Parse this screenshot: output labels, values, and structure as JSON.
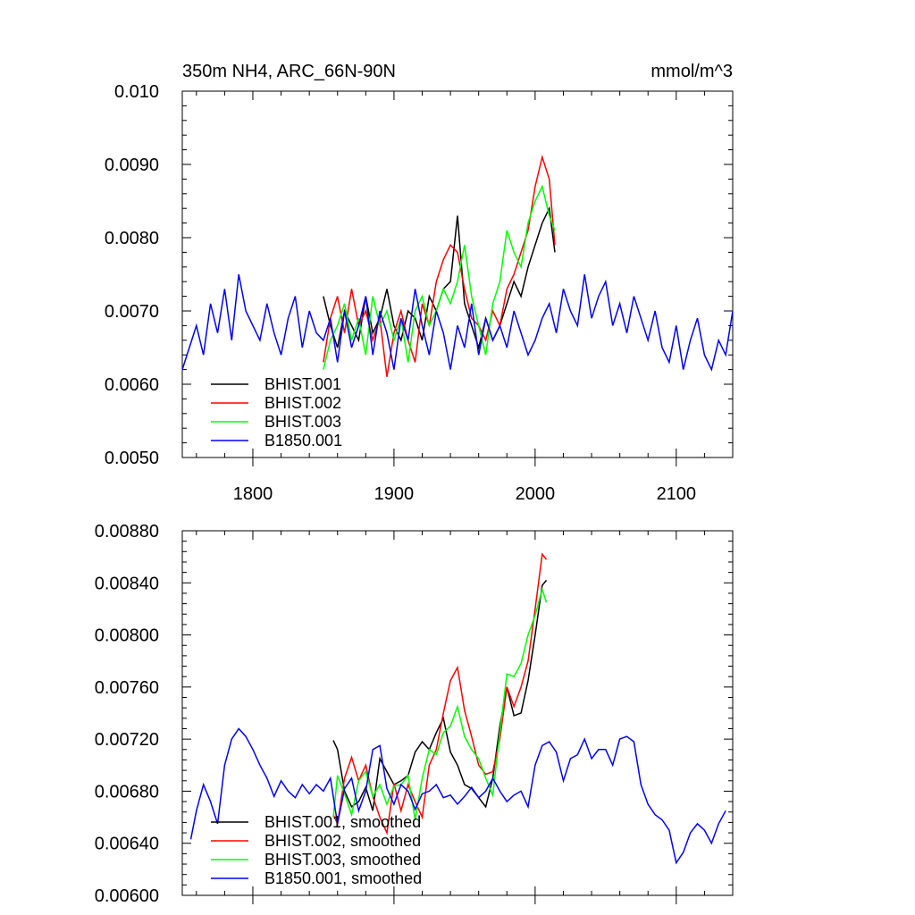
{
  "chart_data": [
    {
      "type": "line",
      "title": "350m NH4, ARC_66N-90N",
      "units": "mmol/m^3",
      "xlabel": "",
      "ylabel": "",
      "xlim": [
        1750,
        2140
      ],
      "ylim": [
        0.005,
        0.01
      ],
      "x_ticks": [
        1800,
        1900,
        2000,
        2100
      ],
      "x_tick_labels": [
        "1800",
        "1900",
        "2000",
        "2100"
      ],
      "y_ticks": [
        0.005,
        0.006,
        0.007,
        0.008,
        0.009,
        0.01
      ],
      "y_tick_labels": [
        "0.0050",
        "0.0060",
        "0.0070",
        "0.0080",
        "0.0090",
        "0.010"
      ],
      "grid": false,
      "legend_position": "bottom-left",
      "series": [
        {
          "name": "BHIST.001",
          "color": "#000000",
          "x": [
            1850,
            1855,
            1860,
            1865,
            1870,
            1875,
            1880,
            1885,
            1890,
            1895,
            1900,
            1905,
            1910,
            1915,
            1920,
            1925,
            1930,
            1935,
            1940,
            1945,
            1950,
            1955,
            1960,
            1965,
            1970,
            1975,
            1980,
            1985,
            1990,
            1995,
            2000,
            2005,
            2010,
            2014
          ],
          "values": [
            0.0072,
            0.0068,
            0.0065,
            0.007,
            0.0068,
            0.0066,
            0.0072,
            0.0067,
            0.0069,
            0.0073,
            0.0068,
            0.0066,
            0.007,
            0.0069,
            0.0066,
            0.0072,
            0.007,
            0.0073,
            0.0074,
            0.0083,
            0.0071,
            0.0068,
            0.0065,
            0.0069,
            0.0066,
            0.0068,
            0.0071,
            0.0074,
            0.0072,
            0.0076,
            0.0079,
            0.0082,
            0.0084,
            0.0078
          ]
        },
        {
          "name": "BHIST.002",
          "color": "#ff0000",
          "x": [
            1850,
            1855,
            1860,
            1865,
            1870,
            1875,
            1880,
            1885,
            1890,
            1895,
            1900,
            1905,
            1910,
            1915,
            1920,
            1925,
            1930,
            1935,
            1940,
            1945,
            1950,
            1955,
            1960,
            1965,
            1970,
            1975,
            1980,
            1985,
            1990,
            1995,
            2000,
            2005,
            2010,
            2014
          ],
          "values": [
            0.0063,
            0.0069,
            0.0072,
            0.0067,
            0.0073,
            0.0068,
            0.007,
            0.0066,
            0.0069,
            0.0061,
            0.0067,
            0.007,
            0.0066,
            0.0063,
            0.0071,
            0.0068,
            0.0074,
            0.0077,
            0.0079,
            0.0078,
            0.0073,
            0.0069,
            0.0068,
            0.0066,
            0.007,
            0.0068,
            0.0073,
            0.0075,
            0.0078,
            0.0081,
            0.0087,
            0.0091,
            0.0088,
            0.0079
          ]
        },
        {
          "name": "BHIST.003",
          "color": "#00ff00",
          "x": [
            1850,
            1855,
            1860,
            1865,
            1870,
            1875,
            1880,
            1885,
            1890,
            1895,
            1900,
            1905,
            1910,
            1915,
            1920,
            1925,
            1930,
            1935,
            1940,
            1945,
            1950,
            1955,
            1960,
            1965,
            1970,
            1975,
            1980,
            1985,
            1990,
            1995,
            2000,
            2005,
            2010,
            2014
          ],
          "values": [
            0.0062,
            0.0066,
            0.0068,
            0.0071,
            0.0066,
            0.0069,
            0.0064,
            0.0072,
            0.0068,
            0.007,
            0.0066,
            0.0069,
            0.0063,
            0.007,
            0.0072,
            0.0068,
            0.007,
            0.0073,
            0.0071,
            0.0074,
            0.0079,
            0.0072,
            0.0068,
            0.0064,
            0.0071,
            0.0074,
            0.0081,
            0.0078,
            0.0076,
            0.0082,
            0.0085,
            0.0087,
            0.0083,
            0.0081
          ]
        },
        {
          "name": "B1850.001",
          "color": "#0000ff",
          "x": [
            1750,
            1755,
            1760,
            1765,
            1770,
            1775,
            1780,
            1785,
            1790,
            1795,
            1800,
            1805,
            1810,
            1815,
            1820,
            1825,
            1830,
            1835,
            1840,
            1845,
            1850,
            1855,
            1860,
            1865,
            1870,
            1875,
            1880,
            1885,
            1890,
            1895,
            1900,
            1905,
            1910,
            1915,
            1920,
            1925,
            1930,
            1935,
            1940,
            1945,
            1950,
            1955,
            1960,
            1965,
            1970,
            1975,
            1980,
            1985,
            1990,
            1995,
            2000,
            2005,
            2010,
            2015,
            2020,
            2025,
            2030,
            2035,
            2040,
            2045,
            2050,
            2055,
            2060,
            2065,
            2070,
            2075,
            2080,
            2085,
            2090,
            2095,
            2100,
            2105,
            2110,
            2115,
            2120,
            2125,
            2130,
            2135,
            2140
          ],
          "values": [
            0.0062,
            0.0065,
            0.0068,
            0.0064,
            0.0071,
            0.0067,
            0.0073,
            0.0066,
            0.0075,
            0.007,
            0.0068,
            0.0066,
            0.0071,
            0.0067,
            0.0064,
            0.0069,
            0.0072,
            0.0065,
            0.007,
            0.0067,
            0.0066,
            0.0069,
            0.0063,
            0.007,
            0.0065,
            0.0068,
            0.0072,
            0.0064,
            0.007,
            0.0067,
            0.0062,
            0.0069,
            0.0066,
            0.0073,
            0.0068,
            0.0064,
            0.007,
            0.0067,
            0.0062,
            0.0068,
            0.0065,
            0.0071,
            0.0064,
            0.0069,
            0.0066,
            0.0068,
            0.0065,
            0.007,
            0.0067,
            0.0064,
            0.0066,
            0.0069,
            0.0071,
            0.0067,
            0.0073,
            0.007,
            0.0068,
            0.0075,
            0.0069,
            0.0072,
            0.0074,
            0.0068,
            0.0071,
            0.0067,
            0.0072,
            0.0069,
            0.0066,
            0.007,
            0.0065,
            0.0063,
            0.0068,
            0.0062,
            0.0066,
            0.0069,
            0.0064,
            0.0062,
            0.0066,
            0.0064,
            0.007
          ]
        }
      ]
    },
    {
      "type": "line",
      "title": "",
      "xlabel": "",
      "ylabel": "",
      "xlim": [
        1750,
        2140
      ],
      "ylim": [
        0.006,
        0.0088
      ],
      "x_ticks": [
        1800,
        1900,
        2000,
        2100
      ],
      "x_tick_labels": [
        "",
        "",
        "",
        ""
      ],
      "y_ticks": [
        0.006,
        0.0064,
        0.0068,
        0.0072,
        0.0076,
        0.008,
        0.0084,
        0.0088
      ],
      "y_tick_labels": [
        "0.00600",
        "0.00640",
        "0.00680",
        "0.00720",
        "0.00760",
        "0.00800",
        "0.00840",
        "0.00880"
      ],
      "grid": false,
      "legend_position": "bottom-left",
      "series": [
        {
          "name": "BHIST.001, smoothed",
          "color": "#000000",
          "x": [
            1857,
            1860,
            1865,
            1870,
            1875,
            1880,
            1885,
            1890,
            1895,
            1900,
            1905,
            1910,
            1915,
            1920,
            1925,
            1930,
            1935,
            1940,
            1945,
            1950,
            1955,
            1960,
            1965,
            1970,
            1975,
            1980,
            1985,
            1990,
            1995,
            2000,
            2005,
            2008
          ],
          "values": [
            0.00719,
            0.00712,
            0.0068,
            0.00668,
            0.00672,
            0.00683,
            0.00665,
            0.00705,
            0.00695,
            0.00685,
            0.00688,
            0.00692,
            0.0071,
            0.00718,
            0.00712,
            0.00725,
            0.00736,
            0.0071,
            0.007,
            0.00685,
            0.00682,
            0.00675,
            0.00668,
            0.0069,
            0.0073,
            0.0076,
            0.00738,
            0.0074,
            0.00765,
            0.008,
            0.00838,
            0.00842
          ]
        },
        {
          "name": "BHIST.002, smoothed",
          "color": "#ff0000",
          "x": [
            1857,
            1860,
            1865,
            1870,
            1875,
            1880,
            1885,
            1890,
            1895,
            1900,
            1905,
            1910,
            1915,
            1920,
            1925,
            1930,
            1935,
            1940,
            1945,
            1950,
            1955,
            1960,
            1965,
            1970,
            1975,
            1980,
            1985,
            1990,
            1995,
            2000,
            2005,
            2008
          ],
          "values": [
            0.00662,
            0.00655,
            0.0069,
            0.00706,
            0.00688,
            0.007,
            0.00676,
            0.0066,
            0.00648,
            0.00686,
            0.00665,
            0.00685,
            0.00672,
            0.0066,
            0.007,
            0.00712,
            0.0074,
            0.00765,
            0.00775,
            0.00742,
            0.00722,
            0.007,
            0.00693,
            0.00695,
            0.0072,
            0.0076,
            0.00745,
            0.0076,
            0.0078,
            0.0082,
            0.00862,
            0.00858
          ]
        },
        {
          "name": "BHIST.003, smoothed",
          "color": "#00ff00",
          "x": [
            1857,
            1860,
            1865,
            1870,
            1875,
            1880,
            1885,
            1890,
            1895,
            1900,
            1905,
            1910,
            1915,
            1920,
            1925,
            1930,
            1935,
            1940,
            1945,
            1950,
            1955,
            1960,
            1965,
            1970,
            1975,
            1980,
            1985,
            1990,
            1995,
            2000,
            2005,
            2008
          ],
          "values": [
            0.0066,
            0.00692,
            0.00678,
            0.00662,
            0.00688,
            0.00695,
            0.00676,
            0.00685,
            0.0067,
            0.00684,
            0.00685,
            0.00692,
            0.00658,
            0.0069,
            0.00712,
            0.00708,
            0.00725,
            0.0073,
            0.00745,
            0.00722,
            0.00712,
            0.00705,
            0.0069,
            0.00677,
            0.00725,
            0.0077,
            0.00768,
            0.00778,
            0.008,
            0.00815,
            0.00835,
            0.00825
          ]
        },
        {
          "name": "B1850.001, smoothed",
          "color": "#0000ff",
          "x": [
            1756,
            1760,
            1765,
            1770,
            1775,
            1780,
            1785,
            1790,
            1795,
            1800,
            1805,
            1810,
            1815,
            1820,
            1825,
            1830,
            1835,
            1840,
            1845,
            1850,
            1855,
            1860,
            1865,
            1870,
            1875,
            1880,
            1885,
            1890,
            1895,
            1900,
            1905,
            1910,
            1915,
            1920,
            1925,
            1930,
            1935,
            1940,
            1945,
            1950,
            1955,
            1960,
            1965,
            1970,
            1975,
            1980,
            1985,
            1990,
            1995,
            2000,
            2005,
            2010,
            2015,
            2020,
            2025,
            2030,
            2035,
            2040,
            2045,
            2050,
            2055,
            2060,
            2065,
            2070,
            2075,
            2080,
            2085,
            2090,
            2095,
            2100,
            2105,
            2110,
            2115,
            2120,
            2125,
            2130,
            2135
          ],
          "values": [
            0.00643,
            0.00665,
            0.00685,
            0.00672,
            0.00655,
            0.007,
            0.0072,
            0.00728,
            0.00722,
            0.00712,
            0.007,
            0.0069,
            0.00676,
            0.00688,
            0.0068,
            0.00675,
            0.00685,
            0.00678,
            0.00685,
            0.0068,
            0.0069,
            0.00655,
            0.00682,
            0.0069,
            0.00665,
            0.0068,
            0.00712,
            0.00715,
            0.00682,
            0.0067,
            0.00685,
            0.0068,
            0.00666,
            0.00678,
            0.0068,
            0.00685,
            0.00675,
            0.00677,
            0.0067,
            0.00676,
            0.00683,
            0.00675,
            0.0068,
            0.0069,
            0.0068,
            0.00672,
            0.00677,
            0.0068,
            0.00668,
            0.007,
            0.00715,
            0.00718,
            0.0071,
            0.00688,
            0.00705,
            0.00708,
            0.0072,
            0.00705,
            0.00712,
            0.00712,
            0.007,
            0.0072,
            0.00722,
            0.00718,
            0.00685,
            0.0067,
            0.00662,
            0.00658,
            0.0065,
            0.00625,
            0.00633,
            0.00648,
            0.00655,
            0.0065,
            0.0064,
            0.00655,
            0.00665
          ]
        }
      ]
    }
  ]
}
